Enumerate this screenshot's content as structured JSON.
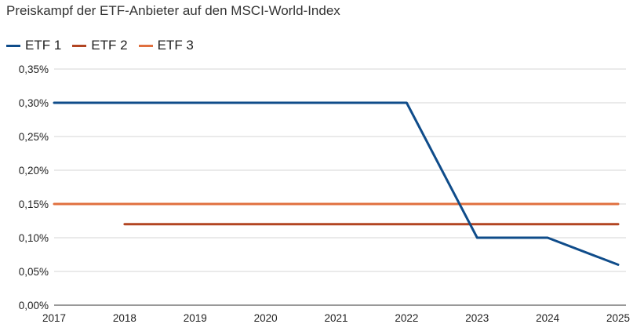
{
  "chart_data": {
    "type": "line",
    "title": "Preiskampf der ETF-Anbieter auf den MSCI-World-Index",
    "xlabel": "",
    "ylabel": "",
    "x": [
      2017,
      2018,
      2019,
      2020,
      2021,
      2022,
      2023,
      2024,
      2025
    ],
    "x_tick_labels": [
      "2017",
      "2018",
      "2019",
      "2020",
      "2021",
      "2022",
      "2023",
      "2024",
      "2025"
    ],
    "ylim": [
      0,
      0.35
    ],
    "y_ticks": [
      0,
      0.05,
      0.1,
      0.15,
      0.2,
      0.25,
      0.3,
      0.35
    ],
    "y_tick_labels": [
      "0,00%",
      "0,05%",
      "0,10%",
      "0,15%",
      "0,20%",
      "0,25%",
      "0,30%",
      "0,35%"
    ],
    "grid": true,
    "legend_position": "top-left",
    "series": [
      {
        "name": "ETF 1",
        "color": "#0f4c8a",
        "values": [
          0.3,
          0.3,
          0.3,
          0.3,
          0.3,
          0.3,
          0.1,
          0.1,
          0.06
        ]
      },
      {
        "name": "ETF 2",
        "color": "#b24522",
        "values": [
          null,
          0.12,
          0.12,
          0.12,
          0.12,
          0.12,
          0.12,
          0.12,
          0.12
        ]
      },
      {
        "name": "ETF 3",
        "color": "#e0703f",
        "values": [
          0.15,
          0.15,
          0.15,
          0.15,
          0.15,
          0.15,
          0.15,
          0.15,
          0.15
        ]
      }
    ]
  }
}
